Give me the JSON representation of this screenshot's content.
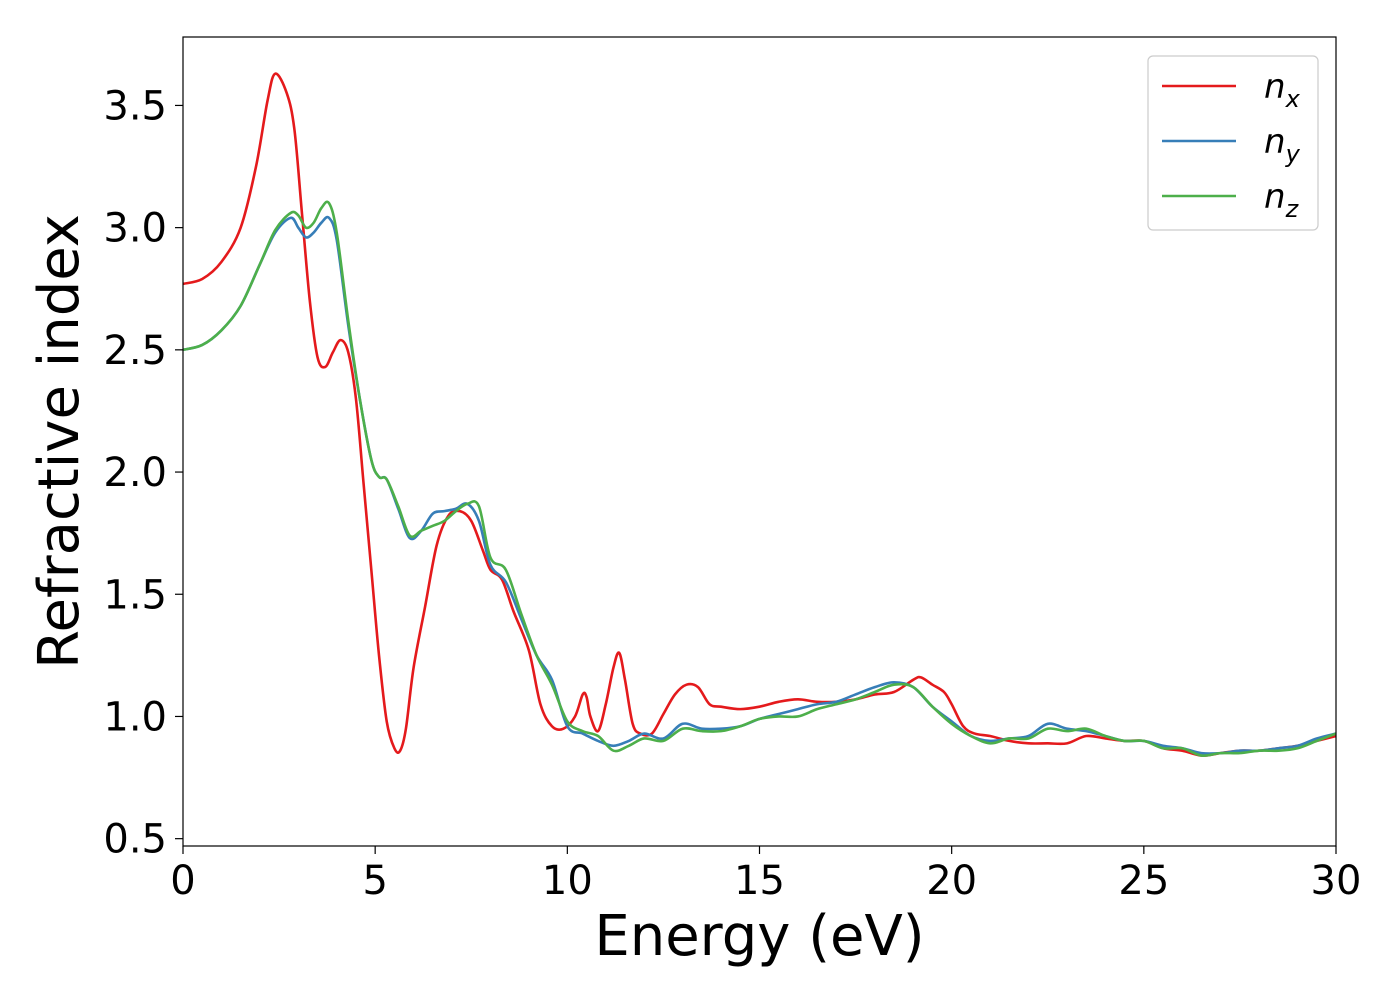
{
  "chart_data": {
    "type": "line",
    "xlabel": "Energy (eV)",
    "ylabel": "Refractive index",
    "xlim": [
      0,
      30
    ],
    "ylim": [
      0.47,
      3.78
    ],
    "xticks": [
      0,
      5,
      10,
      15,
      20,
      25,
      30
    ],
    "xtick_labels": [
      "0",
      "5",
      "10",
      "15",
      "20",
      "25",
      "30"
    ],
    "yticks": [
      0.5,
      1.0,
      1.5,
      2.0,
      2.5,
      3.0,
      3.5
    ],
    "ytick_labels": [
      "0.5",
      "1.0",
      "1.5",
      "2.0",
      "2.5",
      "3.0",
      "3.5"
    ],
    "grid": false,
    "legend_position": "top-right",
    "series": [
      {
        "name": "n_x",
        "label_base": "n",
        "label_sub": "x",
        "color": "#e41a1c",
        "x": [
          0,
          0.5,
          1.0,
          1.5,
          1.9,
          2.2,
          2.4,
          2.7,
          2.9,
          3.1,
          3.3,
          3.5,
          3.7,
          3.9,
          4.1,
          4.3,
          4.5,
          4.7,
          4.9,
          5.1,
          5.3,
          5.5,
          5.65,
          5.8,
          6.0,
          6.3,
          6.6,
          6.9,
          7.2,
          7.5,
          7.8,
          8.0,
          8.3,
          8.6,
          9.0,
          9.3,
          9.6,
          9.9,
          10.2,
          10.4,
          10.5,
          10.6,
          10.8,
          11.0,
          11.2,
          11.35,
          11.5,
          11.7,
          11.9,
          12.2,
          12.5,
          12.8,
          13.1,
          13.4,
          13.7,
          14.0,
          14.5,
          15.0,
          15.5,
          16.0,
          16.5,
          17.0,
          17.5,
          18.0,
          18.5,
          19.0,
          19.2,
          19.5,
          19.8,
          20.0,
          20.3,
          20.6,
          21.0,
          21.5,
          22.0,
          22.5,
          23.0,
          23.5,
          24.0,
          24.5,
          25.0,
          25.5,
          26.0,
          26.5,
          27.0,
          27.5,
          28.0,
          28.5,
          29.0,
          29.5,
          30.0
        ],
        "y": [
          2.77,
          2.79,
          2.86,
          3.0,
          3.25,
          3.52,
          3.63,
          3.55,
          3.4,
          3.05,
          2.7,
          2.47,
          2.43,
          2.49,
          2.54,
          2.49,
          2.3,
          1.95,
          1.6,
          1.25,
          0.98,
          0.87,
          0.86,
          0.95,
          1.2,
          1.45,
          1.7,
          1.82,
          1.84,
          1.8,
          1.68,
          1.6,
          1.56,
          1.43,
          1.27,
          1.05,
          0.96,
          0.95,
          1.0,
          1.09,
          1.08,
          1.0,
          0.94,
          1.05,
          1.2,
          1.26,
          1.15,
          0.97,
          0.93,
          0.93,
          1.01,
          1.09,
          1.13,
          1.12,
          1.05,
          1.04,
          1.03,
          1.04,
          1.06,
          1.07,
          1.06,
          1.06,
          1.07,
          1.09,
          1.1,
          1.15,
          1.16,
          1.13,
          1.1,
          1.05,
          0.96,
          0.93,
          0.92,
          0.9,
          0.89,
          0.89,
          0.89,
          0.92,
          0.91,
          0.9,
          0.9,
          0.87,
          0.86,
          0.84,
          0.85,
          0.86,
          0.86,
          0.87,
          0.88,
          0.9,
          0.92
        ]
      },
      {
        "name": "n_y",
        "label_base": "n",
        "label_sub": "y",
        "color": "#377eb8",
        "x": [
          0,
          0.5,
          1.0,
          1.5,
          2.0,
          2.4,
          2.8,
          3.0,
          3.2,
          3.4,
          3.6,
          3.8,
          4.0,
          4.3,
          4.6,
          4.9,
          5.1,
          5.3,
          5.6,
          5.9,
          6.2,
          6.5,
          6.8,
          7.1,
          7.4,
          7.7,
          8.0,
          8.4,
          8.8,
          9.2,
          9.6,
          10.0,
          10.4,
          10.8,
          11.2,
          11.6,
          12.0,
          12.5,
          13.0,
          13.5,
          14.0,
          14.5,
          15.0,
          15.5,
          16.0,
          16.5,
          17.0,
          17.5,
          18.0,
          18.5,
          19.0,
          19.5,
          20.0,
          20.5,
          21.0,
          21.5,
          22.0,
          22.5,
          23.0,
          23.5,
          24.0,
          24.5,
          25.0,
          25.5,
          26.0,
          26.5,
          27.0,
          27.5,
          28.0,
          28.5,
          29.0,
          29.5,
          30.0
        ],
        "y": [
          2.5,
          2.52,
          2.58,
          2.68,
          2.85,
          2.98,
          3.04,
          3.0,
          2.96,
          2.98,
          3.02,
          3.04,
          2.95,
          2.6,
          2.3,
          2.05,
          1.98,
          1.97,
          1.85,
          1.73,
          1.76,
          1.83,
          1.84,
          1.85,
          1.87,
          1.8,
          1.62,
          1.55,
          1.4,
          1.25,
          1.15,
          0.96,
          0.93,
          0.9,
          0.88,
          0.9,
          0.93,
          0.91,
          0.97,
          0.95,
          0.95,
          0.96,
          0.99,
          1.01,
          1.03,
          1.05,
          1.06,
          1.09,
          1.12,
          1.14,
          1.12,
          1.04,
          0.98,
          0.92,
          0.9,
          0.91,
          0.92,
          0.97,
          0.95,
          0.94,
          0.92,
          0.9,
          0.9,
          0.88,
          0.87,
          0.85,
          0.85,
          0.86,
          0.86,
          0.87,
          0.88,
          0.91,
          0.93
        ]
      },
      {
        "name": "n_z",
        "label_base": "n",
        "label_sub": "z",
        "color": "#4daf4a",
        "x": [
          0,
          0.5,
          1.0,
          1.5,
          2.0,
          2.4,
          2.8,
          3.0,
          3.2,
          3.4,
          3.6,
          3.8,
          4.0,
          4.3,
          4.6,
          4.9,
          5.1,
          5.3,
          5.6,
          5.9,
          6.2,
          6.5,
          6.8,
          7.1,
          7.4,
          7.7,
          8.0,
          8.4,
          8.8,
          9.2,
          9.6,
          10.0,
          10.4,
          10.8,
          11.2,
          11.6,
          12.0,
          12.5,
          13.0,
          13.5,
          14.0,
          14.5,
          15.0,
          15.5,
          16.0,
          16.5,
          17.0,
          17.5,
          18.0,
          18.5,
          19.0,
          19.5,
          20.0,
          20.5,
          21.0,
          21.5,
          22.0,
          22.5,
          23.0,
          23.5,
          24.0,
          24.5,
          25.0,
          25.5,
          26.0,
          26.5,
          27.0,
          27.5,
          28.0,
          28.5,
          29.0,
          29.5,
          30.0
        ],
        "y": [
          2.5,
          2.52,
          2.58,
          2.68,
          2.85,
          2.99,
          3.06,
          3.05,
          3.0,
          3.02,
          3.08,
          3.1,
          2.98,
          2.62,
          2.3,
          2.05,
          1.98,
          1.97,
          1.86,
          1.74,
          1.76,
          1.78,
          1.8,
          1.84,
          1.87,
          1.86,
          1.65,
          1.6,
          1.42,
          1.25,
          1.13,
          0.98,
          0.94,
          0.92,
          0.86,
          0.88,
          0.91,
          0.9,
          0.95,
          0.94,
          0.94,
          0.96,
          0.99,
          1.0,
          1.0,
          1.03,
          1.05,
          1.07,
          1.1,
          1.13,
          1.12,
          1.04,
          0.97,
          0.92,
          0.89,
          0.91,
          0.91,
          0.95,
          0.94,
          0.95,
          0.92,
          0.9,
          0.9,
          0.87,
          0.87,
          0.84,
          0.85,
          0.85,
          0.86,
          0.86,
          0.87,
          0.9,
          0.93
        ]
      }
    ]
  }
}
